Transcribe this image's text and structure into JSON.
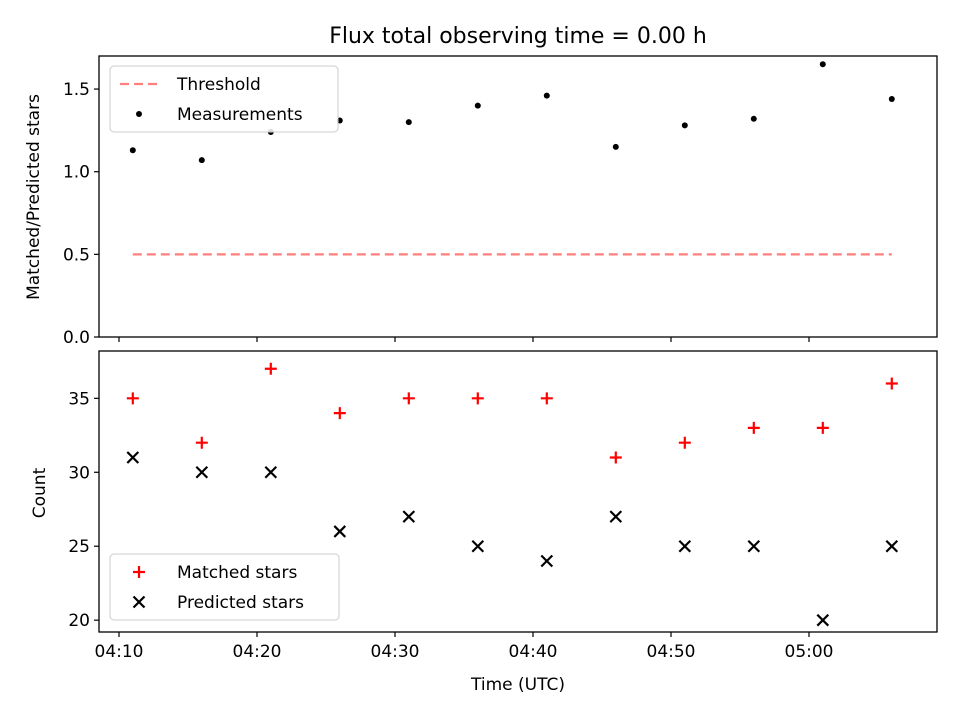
{
  "chart_data": [
    {
      "type": "scatter",
      "title": "Flux total observing time = 0.00 h",
      "ylabel": "Matched/Predicted stars",
      "xlabel": "",
      "ylim": [
        0,
        1.7
      ],
      "yticks": [
        0.0,
        0.5,
        1.0,
        1.5
      ],
      "x_times": [
        "04:11",
        "04:16",
        "04:21",
        "04:26",
        "04:31",
        "04:36",
        "04:41",
        "04:46",
        "04:51",
        "04:56",
        "05:01",
        "05:06"
      ],
      "series": [
        {
          "name": "Threshold",
          "kind": "dashed-line",
          "color": "#ff7f7f",
          "x": [
            "04:11",
            "05:06"
          ],
          "values": [
            0.5,
            0.5
          ]
        },
        {
          "name": "Measurements",
          "kind": "dot",
          "color": "#000000",
          "values": [
            1.13,
            1.07,
            1.24,
            1.31,
            1.3,
            1.4,
            1.46,
            1.15,
            1.28,
            1.32,
            1.65,
            1.44
          ]
        }
      ],
      "legend": "upper-left",
      "grid": false
    },
    {
      "type": "scatter",
      "title": "",
      "ylabel": "Count",
      "xlabel": "Time (UTC)",
      "ylim": [
        19.2,
        38.2
      ],
      "yticks": [
        20,
        25,
        30,
        35
      ],
      "xticks": [
        "04:10",
        "04:20",
        "04:30",
        "04:40",
        "04:50",
        "05:00"
      ],
      "x_times": [
        "04:11",
        "04:16",
        "04:21",
        "04:26",
        "04:31",
        "04:36",
        "04:41",
        "04:46",
        "04:51",
        "04:56",
        "05:01",
        "05:06"
      ],
      "series": [
        {
          "name": "Matched stars",
          "kind": "plus",
          "color": "#ff0000",
          "values": [
            35,
            32,
            37,
            34,
            35,
            35,
            35,
            31,
            32,
            33,
            33,
            36
          ]
        },
        {
          "name": "Predicted stars",
          "kind": "x",
          "color": "#000000",
          "values": [
            31,
            30,
            30,
            26,
            27,
            25,
            24,
            27,
            25,
            25,
            20,
            25
          ]
        }
      ],
      "legend": "lower-left",
      "grid": false
    }
  ]
}
